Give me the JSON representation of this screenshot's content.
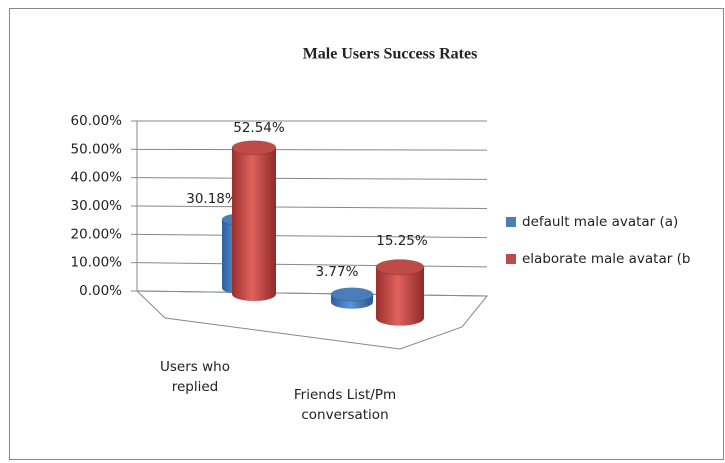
{
  "chart_data": {
    "type": "bar3d",
    "title": "Male Users Success Rates",
    "categories": [
      "Users who replied",
      "Friends List/Pm conversation"
    ],
    "series": [
      {
        "name": "default male avatar (a)",
        "color": "#4a7ebb",
        "values": [
          30.18,
          3.77
        ],
        "value_labels": [
          "30.18%",
          "3.77%"
        ]
      },
      {
        "name": "elaborate male avatar (b",
        "color": "#be4b48",
        "values": [
          52.54,
          15.25
        ],
        "value_labels": [
          "52.54%",
          "15.25%"
        ]
      }
    ],
    "ylim": [
      0,
      60
    ],
    "yticks": [
      {
        "value": 0,
        "label": "0.00%"
      },
      {
        "value": 10,
        "label": "10.00%"
      },
      {
        "value": 20,
        "label": "20.00%"
      },
      {
        "value": 30,
        "label": "30.00%"
      },
      {
        "value": 40,
        "label": "40.00%"
      },
      {
        "value": 50,
        "label": "50.00%"
      },
      {
        "value": 60,
        "label": "60.00%"
      }
    ],
    "grid": true,
    "legend": "right"
  }
}
